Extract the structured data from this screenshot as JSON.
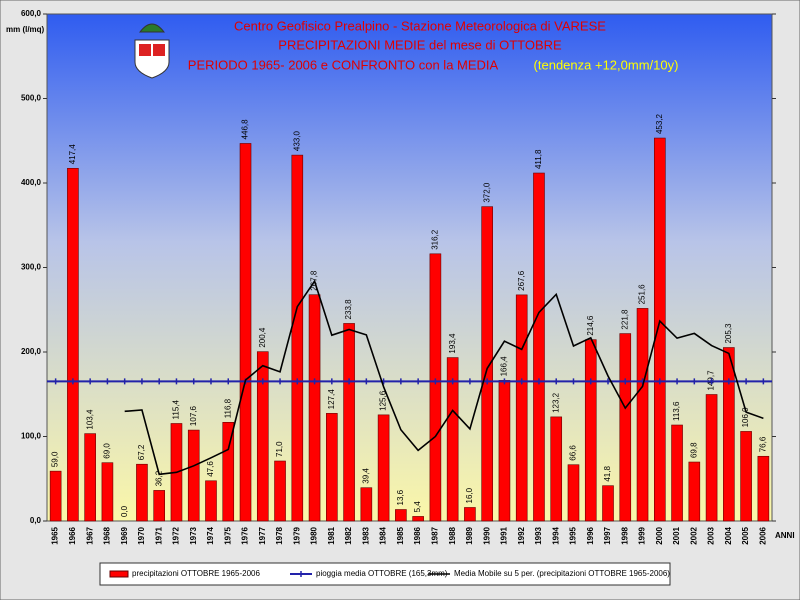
{
  "chart_data": {
    "type": "bar",
    "title_lines": [
      "Centro Geofisico Prealpino - Stazione Meteorologica di VARESE",
      "PRECIPITAZIONI MEDIE del mese di OTTOBRE",
      "PERIODO 1965- 2006 e CONFRONTO con la MEDIA"
    ],
    "trend_note": "(tendenza +12,0mm/10y)",
    "y_axis_label": "mm (l/mq)",
    "x_axis_label": "ANNI",
    "categories": [
      "1965",
      "1966",
      "1967",
      "1968",
      "1969",
      "1970",
      "1971",
      "1972",
      "1973",
      "1974",
      "1975",
      "1976",
      "1977",
      "1978",
      "1979",
      "1980",
      "1981",
      "1982",
      "1983",
      "1984",
      "1985",
      "1986",
      "1987",
      "1988",
      "1989",
      "1990",
      "1991",
      "1992",
      "1993",
      "1994",
      "1995",
      "1996",
      "1997",
      "1998",
      "1999",
      "2000",
      "2001",
      "2002",
      "2003",
      "2004",
      "2005",
      "2006"
    ],
    "series": [
      {
        "name": "precipitazioni OTTOBRE 1965-2006",
        "color": "#ff0000",
        "values": [
          59.0,
          417.4,
          103.4,
          69.0,
          0.0,
          67.2,
          36.2,
          115.4,
          107.6,
          47.6,
          116.8,
          446.8,
          200.4,
          71.0,
          433.0,
          267.8,
          127.4,
          233.8,
          39.4,
          125.6,
          13.6,
          5.4,
          316.2,
          193.4,
          16.0,
          372.0,
          166.4,
          267.6,
          411.8,
          123.2,
          66.6,
          214.6,
          41.8,
          221.8,
          251.6,
          453.2,
          113.6,
          69.8,
          149.7,
          205.3,
          106.0,
          76.6
        ],
        "value_labels": [
          "59,0",
          "417,4",
          "103,4",
          "69,0",
          "0,0",
          "67,2",
          "36,2",
          "115,4",
          "107,6",
          "47,6",
          "116,8",
          "446,8",
          "200,4",
          "71,0",
          "433,0",
          "267,8",
          "127,4",
          "233,8",
          "39,4",
          "125,6",
          "13,6",
          "5,4",
          "316,2",
          "193,4",
          "16,0",
          "372,0",
          "166,4",
          "267,6",
          "411,8",
          "123,2",
          "66,6",
          "214,6",
          "41,8",
          "221,8",
          "251,6",
          "453,2",
          "113,6",
          "69,8",
          "149,7",
          "205,3",
          "106,0",
          "76,6"
        ]
      },
      {
        "name": "Media Mobile su 5 per. (precipitazioni OTTOBRE 1965-2006)",
        "color": "#000000",
        "values": [
          null,
          null,
          null,
          null,
          129.8,
          131.4,
          55.2,
          57.6,
          65.3,
          74.8,
          84.7,
          166.8,
          183.8,
          176.5,
          253.6,
          283.8,
          219.9,
          226.6,
          220.3,
          158.8,
          108.0,
          83.6,
          100.0,
          130.8,
          108.9,
          180.6,
          212.8,
          203.1,
          246.8,
          268.2,
          207.1,
          216.8,
          171.6,
          133.6,
          159.3,
          236.6,
          216.4,
          222.0,
          207.6,
          198.3,
          128.9,
          121.5
        ]
      }
    ],
    "mean_line": {
      "name": "pioggia media OTTOBRE (165,3mm)",
      "color": "#2222aa",
      "value": 165.3
    },
    "ylim": [
      0,
      600
    ],
    "yticks": [
      {
        "value": 0,
        "label": "0,0"
      },
      {
        "value": 100,
        "label": "100,0"
      },
      {
        "value": 200,
        "label": "200,0"
      },
      {
        "value": 300,
        "label": "300,0"
      },
      {
        "value": 400,
        "label": "400,0"
      },
      {
        "value": 500,
        "label": "500,0"
      },
      {
        "value": 600,
        "label": "600,0"
      }
    ]
  }
}
